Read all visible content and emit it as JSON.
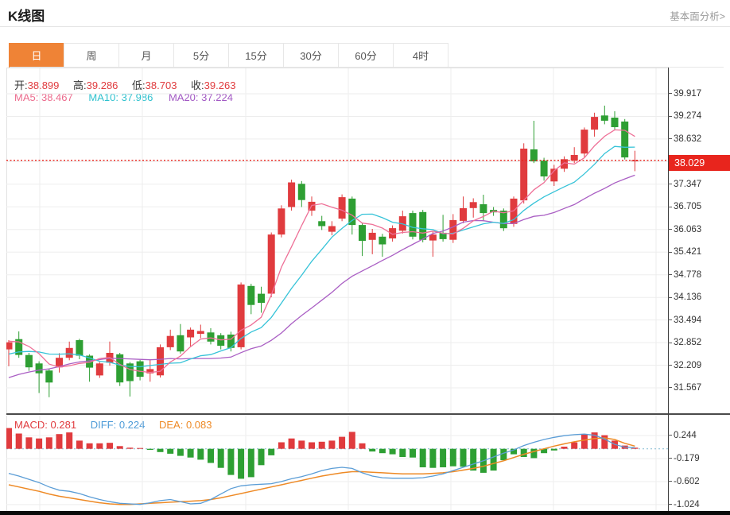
{
  "header": {
    "title": "K线图",
    "link": "基本面分析>"
  },
  "tabs": [
    {
      "id": "day",
      "label": "日",
      "selected": true
    },
    {
      "id": "week",
      "label": "周",
      "selected": false
    },
    {
      "id": "month",
      "label": "月",
      "selected": false
    },
    {
      "id": "5min",
      "label": "5分",
      "selected": false
    },
    {
      "id": "15min",
      "label": "15分",
      "selected": false
    },
    {
      "id": "30min",
      "label": "30分",
      "selected": false
    },
    {
      "id": "60min",
      "label": "60分",
      "selected": false
    },
    {
      "id": "4hour",
      "label": "4时",
      "selected": false
    }
  ],
  "ohlc": {
    "open_label": "开:",
    "open": "38.899",
    "high_label": "高:",
    "high": "39.286",
    "low_label": "低:",
    "low": "38.703",
    "close_label": "收:",
    "close": "39.263"
  },
  "ma_info": {
    "ma5_label": "MA5:",
    "ma5": "38.467",
    "ma10_label": "MA10:",
    "ma10": "37.986",
    "ma20_label": "MA20:",
    "ma20": "37.224"
  },
  "macd_info": {
    "macd_label": "MACD:",
    "macd": "0.281",
    "diff_label": "DIFF:",
    "diff": "0.224",
    "dea_label": "DEA:",
    "dea": "0.083"
  },
  "current_price": "38.029",
  "colors": {
    "up": "#e03b3e",
    "down": "#2e9f33",
    "ma5": "#ee7097",
    "ma10": "#36c3d8",
    "ma20": "#aa5fc4",
    "diff_line": "#5b9dd6",
    "dea_line": "#ee8a26",
    "tab_selected": "#ef8336",
    "badge": "#e8251d",
    "dotted_price_line": "#e8251d",
    "macd_zero_line": "#84bad2",
    "grid": "#ededed",
    "axis": "#3d3d3d"
  },
  "chart_data": {
    "type": "candlestick",
    "title": "K线图",
    "legend_position": "none",
    "grid": true,
    "y_axis_range": [
      31.567,
      39.917
    ],
    "y_tick_step": 0.6423,
    "y_ticks": [
      "39.917",
      "39.274",
      "38.632",
      "37.347",
      "36.705",
      "36.063",
      "35.421",
      "34.778",
      "34.136",
      "33.494",
      "32.852",
      "32.209",
      "31.567"
    ],
    "current_price": 38.029,
    "candles_format": [
      "open",
      "high",
      "low",
      "close"
    ],
    "candles": [
      [
        32.66,
        32.92,
        32.18,
        32.86
      ],
      [
        32.95,
        33.17,
        32.42,
        32.5
      ],
      [
        32.5,
        32.56,
        32.05,
        32.15
      ],
      [
        32.26,
        32.32,
        31.42,
        31.98
      ],
      [
        32.06,
        32.1,
        31.3,
        31.72
      ],
      [
        32.15,
        32.55,
        32.0,
        32.42
      ],
      [
        32.42,
        32.88,
        32.35,
        32.7
      ],
      [
        32.92,
        32.96,
        32.38,
        32.48
      ],
      [
        32.48,
        32.52,
        31.74,
        32.14
      ],
      [
        31.92,
        32.3,
        31.85,
        32.26
      ],
      [
        32.28,
        32.88,
        32.2,
        32.56
      ],
      [
        32.52,
        32.56,
        31.62,
        31.72
      ],
      [
        32.26,
        32.3,
        31.32,
        31.76
      ],
      [
        32.32,
        32.36,
        31.78,
        31.88
      ],
      [
        31.98,
        32.38,
        31.74,
        32.1
      ],
      [
        31.92,
        32.8,
        31.86,
        32.72
      ],
      [
        32.72,
        33.22,
        32.64,
        33.04
      ],
      [
        33.06,
        33.38,
        32.54,
        32.6
      ],
      [
        33.0,
        33.28,
        32.74,
        33.22
      ],
      [
        33.1,
        33.36,
        32.98,
        33.18
      ],
      [
        33.14,
        33.26,
        32.8,
        32.88
      ],
      [
        33.06,
        33.12,
        32.66,
        32.76
      ],
      [
        33.08,
        33.16,
        32.6,
        32.7
      ],
      [
        32.72,
        34.56,
        32.66,
        34.5
      ],
      [
        34.46,
        34.52,
        33.66,
        33.92
      ],
      [
        34.24,
        34.44,
        33.7,
        33.98
      ],
      [
        34.24,
        35.98,
        34.14,
        35.92
      ],
      [
        35.92,
        36.75,
        35.84,
        36.66
      ],
      [
        36.7,
        37.48,
        36.6,
        37.4
      ],
      [
        37.36,
        37.44,
        36.7,
        36.9
      ],
      [
        36.6,
        37.0,
        36.45,
        36.85
      ],
      [
        36.3,
        36.45,
        36.05,
        36.16
      ],
      [
        36.0,
        36.3,
        35.9,
        36.16
      ],
      [
        36.37,
        37.06,
        36.3,
        36.98
      ],
      [
        36.94,
        37.0,
        35.92,
        36.19
      ],
      [
        36.19,
        36.25,
        35.31,
        35.74
      ],
      [
        35.77,
        36.08,
        35.36,
        35.97
      ],
      [
        35.86,
        35.94,
        35.29,
        35.64
      ],
      [
        35.81,
        36.18,
        35.72,
        36.1
      ],
      [
        36.03,
        36.6,
        35.95,
        36.44
      ],
      [
        36.53,
        36.6,
        35.78,
        35.86
      ],
      [
        36.56,
        36.62,
        35.7,
        35.77
      ],
      [
        35.75,
        36.0,
        35.29,
        35.92
      ],
      [
        35.97,
        36.48,
        35.72,
        35.79
      ],
      [
        35.77,
        36.5,
        35.68,
        36.33
      ],
      [
        36.31,
        37.0,
        36.24,
        36.67
      ],
      [
        36.67,
        36.95,
        36.4,
        36.84
      ],
      [
        36.78,
        37.05,
        36.3,
        36.53
      ],
      [
        36.62,
        36.7,
        36.45,
        36.55
      ],
      [
        36.6,
        36.66,
        36.02,
        36.1
      ],
      [
        36.22,
        37.0,
        36.14,
        36.94
      ],
      [
        36.89,
        38.51,
        36.8,
        38.36
      ],
      [
        38.34,
        39.15,
        37.95,
        38.0
      ],
      [
        38.02,
        38.1,
        37.45,
        37.57
      ],
      [
        37.43,
        37.9,
        37.3,
        37.79
      ],
      [
        37.79,
        38.14,
        37.7,
        38.06
      ],
      [
        38.02,
        38.4,
        37.95,
        38.18
      ],
      [
        38.22,
        38.96,
        38.12,
        38.9
      ],
      [
        38.9,
        39.38,
        38.7,
        39.26
      ],
      [
        39.3,
        39.58,
        39.05,
        39.15
      ],
      [
        39.24,
        39.42,
        38.9,
        38.97
      ],
      [
        39.13,
        39.2,
        38.05,
        38.11
      ],
      [
        38.0,
        38.3,
        37.72,
        38.03
      ]
    ],
    "ma_seed_history": [
      30.6,
      30.7,
      30.8,
      30.9,
      31.0,
      31.1,
      31.2,
      31.35,
      31.5,
      31.6,
      31.75,
      31.9,
      32.0,
      32.15,
      32.3,
      32.45,
      32.6,
      32.8,
      33.0,
      33.2
    ],
    "macd": {
      "y_ticks": [
        "0.244",
        "-0.179",
        "-0.602",
        "-1.024"
      ],
      "histogram": [
        0.38,
        0.28,
        0.21,
        0.19,
        0.21,
        0.27,
        0.3,
        0.15,
        0.1,
        0.1,
        0.11,
        0.05,
        0.02,
        0.01,
        -0.02,
        -0.06,
        -0.09,
        -0.13,
        -0.16,
        -0.2,
        -0.26,
        -0.35,
        -0.48,
        -0.55,
        -0.52,
        -0.3,
        -0.12,
        0.12,
        0.19,
        0.15,
        0.12,
        0.13,
        0.15,
        0.22,
        0.31,
        0.1,
        -0.05,
        -0.08,
        -0.1,
        -0.15,
        -0.16,
        -0.34,
        -0.35,
        -0.34,
        -0.32,
        -0.33,
        -0.4,
        -0.44,
        -0.4,
        -0.21,
        -0.1,
        -0.15,
        -0.17,
        -0.08,
        -0.03,
        0.04,
        0.12,
        0.27,
        0.3,
        0.25,
        0.15,
        0.06,
        0.02
      ],
      "diff": [
        -0.45,
        -0.5,
        -0.56,
        -0.62,
        -0.7,
        -0.76,
        -0.78,
        -0.82,
        -0.88,
        -0.93,
        -0.97,
        -1.0,
        -1.01,
        -1.02,
        -0.99,
        -0.95,
        -0.93,
        -0.97,
        -1.01,
        -1.0,
        -0.93,
        -0.83,
        -0.73,
        -0.68,
        -0.66,
        -0.65,
        -0.64,
        -0.6,
        -0.55,
        -0.51,
        -0.46,
        -0.4,
        -0.36,
        -0.34,
        -0.36,
        -0.44,
        -0.5,
        -0.53,
        -0.54,
        -0.54,
        -0.54,
        -0.53,
        -0.5,
        -0.46,
        -0.4,
        -0.34,
        -0.28,
        -0.22,
        -0.15,
        -0.08,
        -0.02,
        0.06,
        0.12,
        0.17,
        0.21,
        0.24,
        0.26,
        0.27,
        0.25,
        0.18,
        0.08,
        0.03,
        0.02
      ],
      "dea": [
        -0.66,
        -0.7,
        -0.74,
        -0.78,
        -0.83,
        -0.87,
        -0.9,
        -0.93,
        -0.96,
        -0.99,
        -1.01,
        -1.02,
        -1.02,
        -1.01,
        -1.0,
        -0.99,
        -0.98,
        -0.97,
        -0.96,
        -0.95,
        -0.93,
        -0.9,
        -0.86,
        -0.82,
        -0.78,
        -0.74,
        -0.7,
        -0.66,
        -0.62,
        -0.58,
        -0.54,
        -0.5,
        -0.47,
        -0.44,
        -0.42,
        -0.42,
        -0.43,
        -0.44,
        -0.45,
        -0.46,
        -0.46,
        -0.46,
        -0.45,
        -0.44,
        -0.42,
        -0.39,
        -0.36,
        -0.32,
        -0.27,
        -0.22,
        -0.16,
        -0.1,
        -0.05,
        0.0,
        0.05,
        0.09,
        0.13,
        0.16,
        0.19,
        0.2,
        0.17,
        0.1,
        0.05
      ]
    }
  }
}
